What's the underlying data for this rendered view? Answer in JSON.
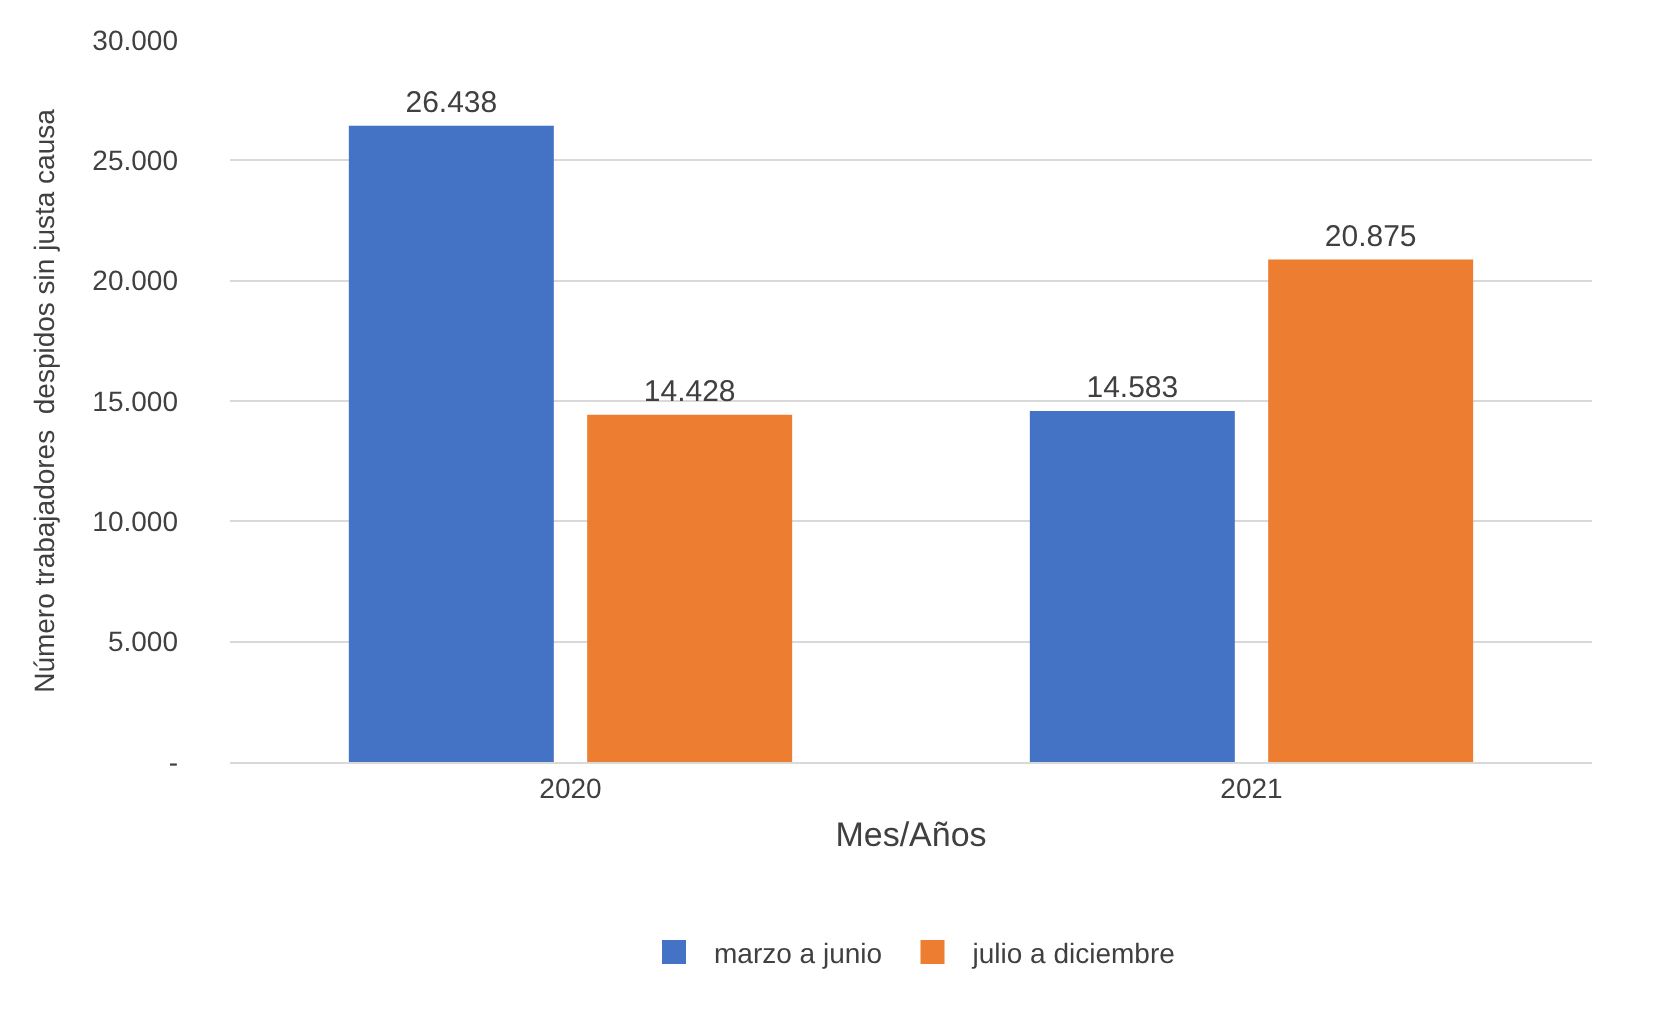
{
  "chart_data": {
    "type": "bar",
    "xlabel": "Mes/Años",
    "ylabel": "Número trabajadores  despidos sin justa causa",
    "categories": [
      "2020",
      "2021"
    ],
    "series": [
      {
        "name": "marzo a junio",
        "color": "#4472c4",
        "values": [
          26438,
          14583
        ],
        "value_labels": [
          "26.438",
          "14.583"
        ]
      },
      {
        "name": "julio a diciembre",
        "color": "#ed7d31",
        "values": [
          14428,
          20875
        ],
        "value_labels": [
          "14.428",
          "20.875"
        ]
      }
    ],
    "ylim": [
      0,
      30000
    ],
    "yticks": [
      {
        "value": 0,
        "label": "-"
      },
      {
        "value": 5000,
        "label": "5.000"
      },
      {
        "value": 10000,
        "label": "10.000"
      },
      {
        "value": 15000,
        "label": "15.000"
      },
      {
        "value": 20000,
        "label": "20.000"
      },
      {
        "value": 25000,
        "label": "25.000"
      },
      {
        "value": 30000,
        "label": "30.000"
      }
    ],
    "grid": "y",
    "legend": "bottom"
  }
}
